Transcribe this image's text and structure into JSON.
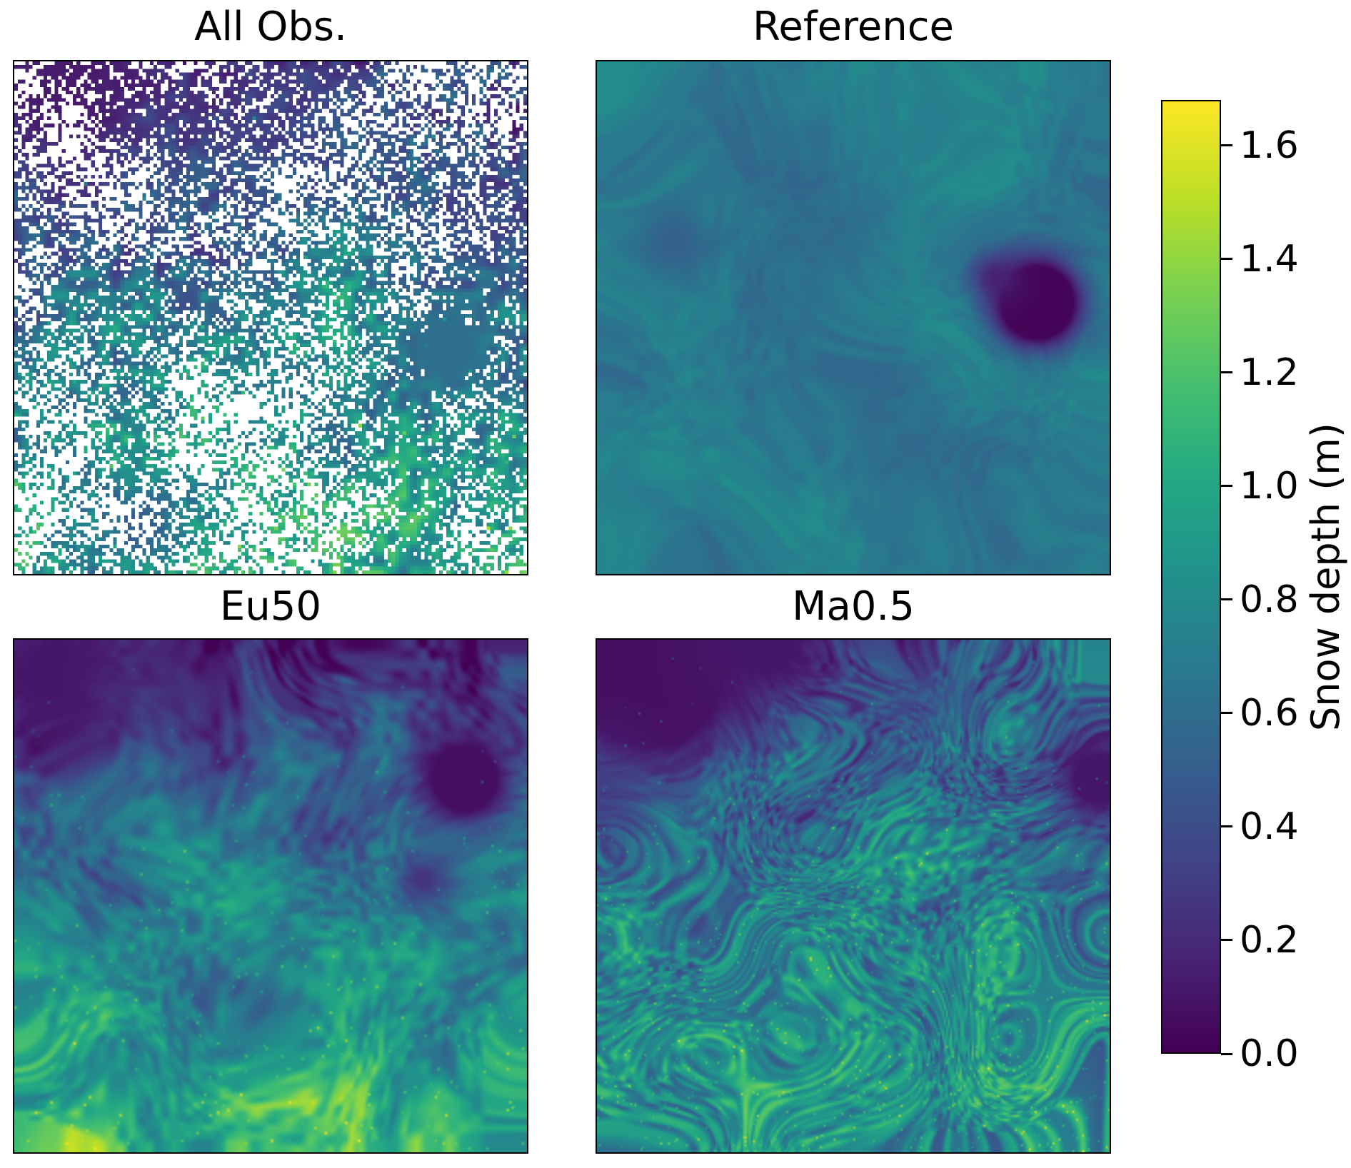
{
  "chart_data": {
    "type": "heatmap",
    "subtype": "2x2 panel comparison of gridded snow depth fields with shared colorbar",
    "layout": {
      "rows": 2,
      "cols": 2,
      "colorbar_position": "right",
      "grid": false,
      "panel_axes": "no ticks, black frame only"
    },
    "colormap": "viridis",
    "colormap_stops": [
      [
        0.0,
        68,
        1,
        84
      ],
      [
        0.1,
        72,
        36,
        117
      ],
      [
        0.2,
        65,
        68,
        135
      ],
      [
        0.3,
        53,
        95,
        141
      ],
      [
        0.4,
        42,
        120,
        142
      ],
      [
        0.5,
        33,
        145,
        140
      ],
      [
        0.6,
        34,
        168,
        132
      ],
      [
        0.7,
        68,
        191,
        112
      ],
      [
        0.8,
        122,
        209,
        81
      ],
      [
        0.9,
        189,
        223,
        38
      ],
      [
        1.0,
        253,
        231,
        37
      ]
    ],
    "colorbar": {
      "label": "Snow depth (m)",
      "vmin": 0.0,
      "vmax": 1.68,
      "ticks": [
        0.0,
        0.2,
        0.4,
        0.6,
        0.8,
        1.0,
        1.2,
        1.4,
        1.6
      ],
      "tick_labels": [
        "0.0",
        "0.2",
        "0.4",
        "0.6",
        "0.8",
        "1.0",
        "1.2",
        "1.4",
        "1.6"
      ]
    },
    "panels": [
      {
        "id": "all_obs",
        "title": "All Obs.",
        "pattern": "Sparse noisy observations with ~40-60% missing (white) pixels; shallow 0-0.3 m purple speckle across upper third, deeper 0.7-1.1 m teal-green speckle over lower two thirds; solid dark-teal patch right of center",
        "grid": 140,
        "pixelated": true,
        "seed": 101,
        "gradient": {
          "top": 0.22,
          "bottom": 0.95,
          "power": 0.5
        },
        "octaves": [
          {
            "cells": 8,
            "amp": 0.2
          },
          {
            "cells": 46,
            "amp": 0.3
          }
        ],
        "warp": 0.0,
        "blobs": [
          {
            "x": 0.1,
            "y": 0.05,
            "r": 0.28,
            "value": 0.12,
            "strength": 1.0
          },
          {
            "x": 0.55,
            "y": 0.12,
            "r": 0.2,
            "value": 0.3,
            "strength": 0.7
          },
          {
            "x": 0.9,
            "y": 0.3,
            "r": 0.12,
            "value": 0.3,
            "strength": 0.8
          },
          {
            "x": 0.85,
            "y": 0.56,
            "r": 0.1,
            "value": 0.6,
            "strength": 1.2,
            "solid": true
          },
          {
            "x": 0.25,
            "y": 0.9,
            "r": 0.09,
            "value": 0.35,
            "strength": 0.8
          }
        ],
        "speckle": {
          "prob": 0.012,
          "amp": 0.5,
          "y_weight": 1
        },
        "sparsity": {
          "base": 0.42,
          "amp": 0.35,
          "cells": 9
        }
      },
      {
        "id": "reference",
        "title": "Reference",
        "pattern": "Smooth continuous field mostly 0.5-0.8 m blue-teal with darker blue mottling; near-zero deep-purple patch right of center; slightly greener corners",
        "grid": 220,
        "pixelated": false,
        "seed": 202,
        "gradient": {
          "top": 0.68,
          "bottom": 0.7,
          "power": 1
        },
        "octaves": [
          {
            "cells": 6,
            "amp": 0.09
          },
          {
            "cells": 40,
            "amp": 0.07
          }
        ],
        "warp": 0.25,
        "blobs": [
          {
            "x": 0.86,
            "y": 0.47,
            "r": 0.08,
            "value": 0.02,
            "strength": 2.2
          },
          {
            "x": 0.78,
            "y": 0.42,
            "r": 0.05,
            "value": 0.15,
            "strength": 1.0
          },
          {
            "x": 0.45,
            "y": 0.33,
            "r": 0.18,
            "value": 0.48,
            "strength": 0.5
          },
          {
            "x": 0.15,
            "y": 0.35,
            "r": 0.07,
            "value": 0.42,
            "strength": 0.7
          },
          {
            "x": 0.62,
            "y": 0.75,
            "r": 0.13,
            "value": 0.52,
            "strength": 0.5
          },
          {
            "x": 0.03,
            "y": 0.97,
            "r": 0.12,
            "value": 0.8,
            "strength": 0.6
          },
          {
            "x": 0.05,
            "y": 0.03,
            "r": 0.14,
            "value": 0.82,
            "strength": 0.5
          }
        ]
      },
      {
        "id": "eu50",
        "title": "Eu50",
        "pattern": "Smooth blobby reconstruction; 0.1-0.3 m dark purple-blue across the top third with a deep patch upper-right, transitioning to 0.8-1.3 m green with bright yellow-green flecks toward the bottom",
        "grid": 200,
        "pixelated": false,
        "seed": 303,
        "gradient": {
          "top": 0.18,
          "bottom": 1.12,
          "power": 0.9
        },
        "octaves": [
          {
            "cells": 9,
            "amp": 0.26
          },
          {
            "cells": 48,
            "amp": 0.2
          }
        ],
        "warp": 0.2,
        "blobs": [
          {
            "x": 0.88,
            "y": 0.27,
            "r": 0.09,
            "value": 0.06,
            "strength": 1.6
          },
          {
            "x": 0.08,
            "y": 0.06,
            "r": 0.16,
            "value": 0.1,
            "strength": 1.1
          },
          {
            "x": 0.8,
            "y": 0.47,
            "r": 0.07,
            "value": 0.2,
            "strength": 0.9
          },
          {
            "x": 0.3,
            "y": 0.1,
            "r": 0.12,
            "value": 0.25,
            "strength": 0.7
          }
        ],
        "speckle": {
          "prob": 0.02,
          "amp": 0.45,
          "y_weight": 1
        }
      },
      {
        "id": "ma05",
        "title": "Ma0.5",
        "pattern": "Filamentary, streaky reconstruction; near-zero deep-purple region upper-left and small dark patch on right edge; 0.7-1.3 m green with bright yellow swirls and dark thin filaments over the lower half",
        "grid": 260,
        "pixelated": false,
        "seed": 404,
        "gradient": {
          "top": 0.5,
          "bottom": 0.95,
          "power": 1
        },
        "octaves": [
          {
            "cells": 8,
            "amp": 0.22
          },
          {
            "cells": 70,
            "amp": 0.33
          }
        ],
        "warp": 0.5,
        "blobs": [
          {
            "x": 0.1,
            "y": 0.07,
            "r": 0.2,
            "value": 0.07,
            "strength": 1.6
          },
          {
            "x": 0.32,
            "y": 0.0,
            "r": 0.14,
            "value": 0.1,
            "strength": 1.2
          },
          {
            "x": 0.0,
            "y": 0.3,
            "r": 0.1,
            "value": 0.25,
            "strength": 0.8
          },
          {
            "x": 0.98,
            "y": 0.27,
            "r": 0.09,
            "value": 0.1,
            "strength": 1.3
          },
          {
            "x": 0.62,
            "y": 0.1,
            "r": 0.1,
            "value": 0.45,
            "strength": 0.6
          }
        ],
        "speckle": {
          "prob": 0.03,
          "amp": 0.5,
          "y_weight": 1
        }
      }
    ]
  }
}
